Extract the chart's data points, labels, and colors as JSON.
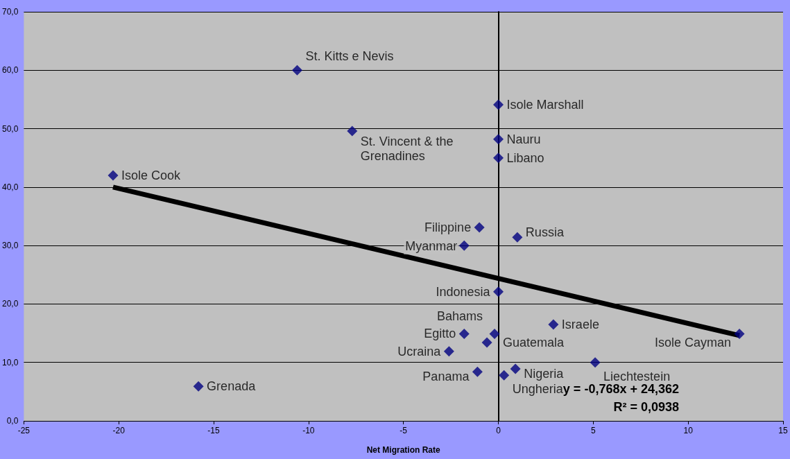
{
  "chart_data": {
    "type": "scatter",
    "xlabel": "Net Migration Rate",
    "xlim": [
      -25,
      15
    ],
    "xticks": [
      -25,
      -20,
      -15,
      -10,
      -5,
      0,
      5,
      10,
      15
    ],
    "ylim": [
      0,
      70
    ],
    "yticks": [
      {
        "value": 0,
        "label": "0,0"
      },
      {
        "value": 10,
        "label": "10,0"
      },
      {
        "value": 20,
        "label": "20,0"
      },
      {
        "value": 30,
        "label": "30,0"
      },
      {
        "value": 40,
        "label": "40,0"
      },
      {
        "value": 50,
        "label": "50,0"
      },
      {
        "value": 60,
        "label": "60,0"
      },
      {
        "value": 70,
        "label": "70,0"
      }
    ],
    "grid": "y",
    "marker": "diamond",
    "series": [
      {
        "type": "scatter",
        "color": "#000080",
        "x": [
          -10.6,
          -7.7,
          0,
          0,
          0,
          -20.3,
          -1,
          1,
          -1.8,
          0,
          2.9,
          12.7,
          -1.8,
          -0.2,
          -0.6,
          -2.6,
          5.1,
          0.9,
          -1.1,
          0.3,
          -15.8
        ],
        "values": [
          60,
          49.6,
          54.1,
          48.2,
          45,
          42,
          33.1,
          31.4,
          30,
          22.1,
          16.5,
          14.9,
          14.9,
          14.9,
          13.4,
          11.9,
          10,
          8.9,
          8.4,
          7.8,
          5.9
        ],
        "value_labels": [
          "St. Kitts e Nevis",
          "St. Vincent & the\nGrenadines",
          "Isole Marshall",
          "Nauru",
          "Libano",
          "Isole Cook",
          "Filippine",
          "Russia",
          "Myanmar",
          "Indonesia",
          "Israele",
          "Isole Cayman",
          "Egitto",
          "Guatemala",
          "Bahams",
          "Ucraina",
          "Liechtestein",
          "Nigeria",
          "Panama",
          "Ungheria",
          "Grenada"
        ]
      },
      {
        "type": "line",
        "color": "#000000",
        "x": [
          -20.3,
          12.7
        ],
        "values": [
          40.0,
          14.6
        ],
        "marker": "none"
      }
    ],
    "annotations": [
      "y = -0,768x + 24,362",
      "R² = 0,0938"
    ]
  }
}
